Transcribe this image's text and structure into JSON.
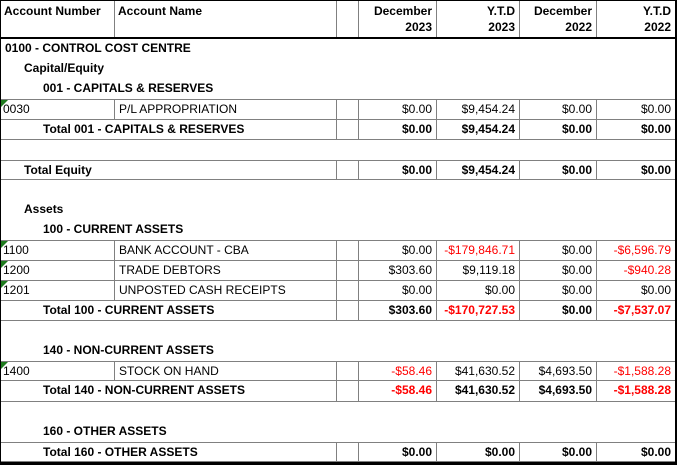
{
  "colors": {
    "negative_text": "#FF0000",
    "positive_text": "#000000",
    "flag_triangle": "#1E7A1E",
    "grid_line": "#808080",
    "outer_border": "#000000",
    "background": "#FFFFFF"
  },
  "report_table": {
    "header": {
      "col1": "Account Number",
      "col2": "Account Name",
      "numeric_columns": [
        {
          "line1": "December",
          "line2": "2023"
        },
        {
          "line1": "Y.T.D",
          "line2": "2023"
        },
        {
          "line1": "December",
          "line2": "2022"
        },
        {
          "line1": "Y.T.D",
          "line2": "2022"
        }
      ]
    },
    "rows": [
      {
        "type": "section",
        "indent": 0,
        "label": "0100 - CONTROL COST CENTRE"
      },
      {
        "type": "section",
        "indent": 1,
        "label": "Capital/Equity"
      },
      {
        "type": "section",
        "indent": 2,
        "label": "001 - CAPITALS & RESERVES"
      },
      {
        "type": "account",
        "number": "0030",
        "name": "P/L APPROPRIATION",
        "flag": true,
        "values": [
          "$0.00",
          "$9,454.24",
          "$0.00",
          "$0.00"
        ]
      },
      {
        "type": "total",
        "indent": 2,
        "label": "Total 001 - CAPITALS & RESERVES",
        "values": [
          "$0.00",
          "$9,454.24",
          "$0.00",
          "$0.00"
        ]
      },
      {
        "type": "blank"
      },
      {
        "type": "total",
        "indent": 1,
        "label": "Total Equity",
        "values": [
          "$0.00",
          "$9,454.24",
          "$0.00",
          "$0.00"
        ]
      },
      {
        "type": "blank"
      },
      {
        "type": "section",
        "indent": 1,
        "label": "Assets"
      },
      {
        "type": "section",
        "indent": 2,
        "label": "100 - CURRENT ASSETS"
      },
      {
        "type": "account",
        "number": "1100",
        "name": "BANK ACCOUNT - CBA",
        "flag": true,
        "values": [
          "$0.00",
          "-$179,846.71",
          "$0.00",
          "-$6,596.79"
        ]
      },
      {
        "type": "account",
        "number": "1200",
        "name": "TRADE DEBTORS",
        "flag": true,
        "values": [
          "$303.60",
          "$9,119.18",
          "$0.00",
          "-$940.28"
        ]
      },
      {
        "type": "account",
        "number": "1201",
        "name": "UNPOSTED CASH RECEIPTS",
        "flag": true,
        "values": [
          "$0.00",
          "$0.00",
          "$0.00",
          "$0.00"
        ]
      },
      {
        "type": "total",
        "indent": 2,
        "label": "Total 100 - CURRENT ASSETS",
        "values": [
          "$303.60",
          "-$170,727.53",
          "$0.00",
          "-$7,537.07"
        ]
      },
      {
        "type": "blank"
      },
      {
        "type": "section",
        "indent": 2,
        "label": "140 - NON-CURRENT ASSETS"
      },
      {
        "type": "account",
        "number": "1400",
        "name": "STOCK ON HAND",
        "flag": true,
        "values": [
          "-$58.46",
          "$41,630.52",
          "$4,693.50",
          "-$1,588.28"
        ]
      },
      {
        "type": "total",
        "indent": 2,
        "label": "Total 140 - NON-CURRENT ASSETS",
        "values": [
          "-$58.46",
          "$41,630.52",
          "$4,693.50",
          "-$1,588.28"
        ]
      },
      {
        "type": "blank"
      },
      {
        "type": "section",
        "indent": 2,
        "label": "160 - OTHER ASSETS"
      },
      {
        "type": "total",
        "indent": 2,
        "label": "Total 160 - OTHER ASSETS",
        "values": [
          "$0.00",
          "$0.00",
          "$0.00",
          "$0.00"
        ]
      }
    ]
  }
}
